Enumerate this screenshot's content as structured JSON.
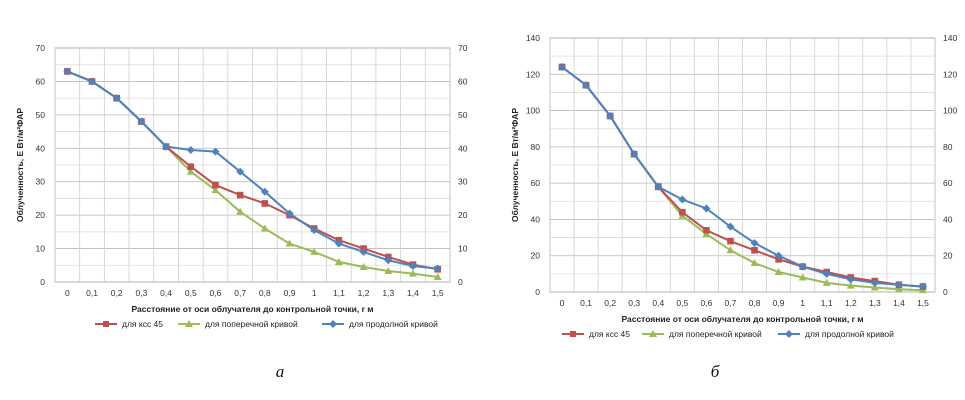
{
  "chart_data": [
    {
      "type": "line",
      "caption": "а",
      "title": "",
      "xlabel": "Расстояние от оси облучателя до контрольной точки, r м",
      "ylabel": "Облученность, Е Вт/м²ФАР",
      "categories": [
        "0",
        "0,1",
        "0,2",
        "0,3",
        "0,4",
        "0,5",
        "0,6",
        "0,7",
        "0,8",
        "0,9",
        "1",
        "1,1",
        "1,2",
        "1,3",
        "1,4",
        "1,5"
      ],
      "ylim": [
        0,
        70
      ],
      "yticks": [
        "0",
        "10",
        "20",
        "30",
        "40",
        "50",
        "60",
        "70"
      ],
      "grid": true,
      "legend_position": "bottom",
      "series": [
        {
          "name": "для ксс 45",
          "color": "#c0504d",
          "marker": "square",
          "values": [
            63,
            60,
            55,
            48,
            40.5,
            34.5,
            29,
            26,
            23.5,
            20,
            16,
            12.5,
            10,
            7.5,
            5.2,
            3.8
          ]
        },
        {
          "name": "для поперечной кривой",
          "color": "#9bbb59",
          "marker": "triangle",
          "values": [
            63,
            60,
            55,
            48,
            40.5,
            33,
            27.5,
            21,
            16,
            11.5,
            9,
            6,
            4.5,
            3.3,
            2.5,
            1.5
          ]
        },
        {
          "name": "для продолной кривой",
          "color": "#4f81bd",
          "marker": "diamond",
          "values": [
            63,
            60,
            55,
            48,
            40.5,
            39.5,
            39,
            33,
            27,
            20.5,
            15.5,
            11.5,
            9,
            6.5,
            4.8,
            4
          ]
        }
      ]
    },
    {
      "type": "line",
      "caption": "б",
      "title": "",
      "xlabel": "Расстояние от оси облучателя до контрольной точки, r м",
      "ylabel": "Облученность, Е Вт/м²ФАР",
      "categories": [
        "0",
        "0,1",
        "0,2",
        "0,3",
        "0,4",
        "0,5",
        "0,6",
        "0,7",
        "0,8",
        "0,9",
        "1",
        "1,1",
        "1,2",
        "1,3",
        "1,4",
        "1,5"
      ],
      "ylim": [
        0,
        140
      ],
      "yticks": [
        "0",
        "20",
        "40",
        "60",
        "80",
        "100",
        "120",
        "140"
      ],
      "grid": true,
      "legend_position": "bottom",
      "series": [
        {
          "name": "для ксс 45",
          "color": "#c0504d",
          "marker": "square",
          "values": [
            124,
            114,
            97,
            76,
            58,
            44,
            34,
            28,
            23,
            18,
            14,
            11,
            8,
            6,
            4,
            3
          ]
        },
        {
          "name": "для поперечной кривой",
          "color": "#9bbb59",
          "marker": "triangle",
          "values": [
            124,
            114,
            97,
            76,
            58,
            42,
            32,
            23,
            16,
            11,
            8,
            5,
            3.5,
            2.5,
            1.5,
            1
          ]
        },
        {
          "name": "для продолной кривой",
          "color": "#4f81bd",
          "marker": "diamond",
          "values": [
            124,
            114,
            97,
            76,
            58,
            51,
            46,
            36,
            27,
            20,
            14,
            10,
            7,
            5,
            4,
            3
          ]
        }
      ]
    }
  ]
}
